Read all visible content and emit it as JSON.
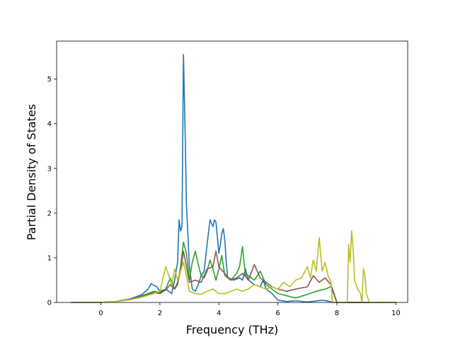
{
  "chart_data": {
    "type": "line",
    "title": "",
    "xlabel": "Frequency (THz)",
    "ylabel": "Partial Density of States",
    "xlim": [
      -1.5,
      10.4
    ],
    "ylim": [
      0,
      5.85
    ],
    "xticks": [
      0,
      2,
      4,
      6,
      8,
      10
    ],
    "yticks": [
      0,
      1,
      2,
      3,
      4,
      5
    ],
    "xtick_labels": [
      "0",
      "2",
      "4",
      "6",
      "8",
      "10"
    ],
    "ytick_labels": [
      "0",
      "1",
      "2",
      "3",
      "4",
      "5"
    ],
    "grid": false,
    "legend": "none",
    "series": [
      {
        "color": "#1f77b4",
        "points": [
          [
            -1.0,
            0
          ],
          [
            0.0,
            0
          ],
          [
            0.5,
            0.02
          ],
          [
            1.0,
            0.08
          ],
          [
            1.4,
            0.18
          ],
          [
            1.6,
            0.3
          ],
          [
            1.7,
            0.42
          ],
          [
            1.8,
            0.38
          ],
          [
            1.9,
            0.35
          ],
          [
            2.0,
            0.25
          ],
          [
            2.2,
            0.3
          ],
          [
            2.3,
            0.25
          ],
          [
            2.4,
            0.2
          ],
          [
            2.5,
            0.5
          ],
          [
            2.6,
            0.9
          ],
          [
            2.65,
            1.85
          ],
          [
            2.7,
            1.6
          ],
          [
            2.75,
            1.7
          ],
          [
            2.8,
            5.55
          ],
          [
            2.85,
            4.0
          ],
          [
            2.9,
            2.2
          ],
          [
            3.0,
            0.8
          ],
          [
            3.1,
            0.3
          ],
          [
            3.2,
            0.25
          ],
          [
            3.3,
            0.4
          ],
          [
            3.4,
            0.6
          ],
          [
            3.5,
            0.7
          ],
          [
            3.6,
            1.3
          ],
          [
            3.7,
            1.85
          ],
          [
            3.8,
            1.7
          ],
          [
            3.85,
            1.85
          ],
          [
            3.9,
            1.8
          ],
          [
            4.0,
            1.1
          ],
          [
            4.05,
            1.3
          ],
          [
            4.1,
            1.55
          ],
          [
            4.15,
            1.65
          ],
          [
            4.2,
            1.4
          ],
          [
            4.25,
            0.9
          ],
          [
            4.3,
            0.55
          ],
          [
            4.5,
            0.5
          ],
          [
            4.7,
            0.55
          ],
          [
            4.8,
            0.5
          ],
          [
            4.9,
            0.75
          ],
          [
            5.0,
            0.5
          ],
          [
            5.2,
            0.4
          ],
          [
            5.4,
            0.35
          ],
          [
            5.5,
            0.5
          ],
          [
            5.6,
            0.3
          ],
          [
            5.8,
            0.2
          ],
          [
            6.0,
            0.05
          ],
          [
            6.3,
            0.02
          ],
          [
            6.6,
            0.04
          ],
          [
            7.0,
            0.01
          ],
          [
            7.5,
            0.05
          ],
          [
            7.7,
            0.03
          ],
          [
            7.9,
            0.0
          ],
          [
            8.0,
            0
          ],
          [
            10.0,
            0
          ]
        ]
      },
      {
        "color": "#2ca02c",
        "points": [
          [
            -1.0,
            0
          ],
          [
            0.0,
            0
          ],
          [
            0.5,
            0.02
          ],
          [
            1.0,
            0.07
          ],
          [
            1.4,
            0.15
          ],
          [
            1.6,
            0.2
          ],
          [
            1.8,
            0.25
          ],
          [
            2.0,
            0.22
          ],
          [
            2.2,
            0.3
          ],
          [
            2.35,
            0.55
          ],
          [
            2.5,
            0.3
          ],
          [
            2.6,
            0.4
          ],
          [
            2.7,
            0.8
          ],
          [
            2.8,
            1.35
          ],
          [
            2.9,
            1.1
          ],
          [
            3.0,
            0.5
          ],
          [
            3.1,
            0.9
          ],
          [
            3.2,
            1.15
          ],
          [
            3.3,
            0.85
          ],
          [
            3.4,
            0.6
          ],
          [
            3.5,
            0.55
          ],
          [
            3.6,
            0.7
          ],
          [
            3.7,
            0.95
          ],
          [
            3.8,
            0.75
          ],
          [
            3.9,
            0.5
          ],
          [
            4.0,
            0.75
          ],
          [
            4.1,
            1.05
          ],
          [
            4.2,
            0.6
          ],
          [
            4.4,
            0.5
          ],
          [
            4.6,
            0.65
          ],
          [
            4.7,
            0.8
          ],
          [
            4.8,
            1.25
          ],
          [
            4.9,
            0.6
          ],
          [
            5.0,
            0.6
          ],
          [
            5.2,
            0.5
          ],
          [
            5.4,
            0.7
          ],
          [
            5.6,
            0.4
          ],
          [
            5.8,
            0.3
          ],
          [
            6.0,
            0.2
          ],
          [
            6.3,
            0.15
          ],
          [
            6.6,
            0.1
          ],
          [
            7.0,
            0.18
          ],
          [
            7.3,
            0.25
          ],
          [
            7.6,
            0.3
          ],
          [
            7.8,
            0.35
          ],
          [
            8.0,
            0
          ],
          [
            10.0,
            0
          ]
        ]
      },
      {
        "color": "#8c564b",
        "points": [
          [
            -1.0,
            0
          ],
          [
            0.0,
            0
          ],
          [
            0.5,
            0.02
          ],
          [
            1.0,
            0.07
          ],
          [
            1.4,
            0.14
          ],
          [
            1.6,
            0.18
          ],
          [
            1.8,
            0.22
          ],
          [
            2.0,
            0.2
          ],
          [
            2.2,
            0.28
          ],
          [
            2.35,
            0.4
          ],
          [
            2.5,
            0.3
          ],
          [
            2.6,
            0.45
          ],
          [
            2.7,
            0.7
          ],
          [
            2.8,
            1.15
          ],
          [
            2.9,
            0.8
          ],
          [
            3.0,
            0.45
          ],
          [
            3.2,
            0.5
          ],
          [
            3.4,
            0.45
          ],
          [
            3.6,
            0.75
          ],
          [
            3.8,
            0.8
          ],
          [
            3.9,
            1.15
          ],
          [
            4.0,
            0.8
          ],
          [
            4.2,
            0.65
          ],
          [
            4.4,
            0.5
          ],
          [
            4.6,
            0.55
          ],
          [
            4.8,
            0.65
          ],
          [
            5.0,
            0.5
          ],
          [
            5.2,
            0.85
          ],
          [
            5.4,
            0.55
          ],
          [
            5.6,
            0.45
          ],
          [
            5.8,
            0.35
          ],
          [
            6.0,
            0.3
          ],
          [
            6.3,
            0.25
          ],
          [
            6.6,
            0.3
          ],
          [
            7.0,
            0.35
          ],
          [
            7.2,
            0.6
          ],
          [
            7.4,
            0.45
          ],
          [
            7.6,
            0.55
          ],
          [
            7.8,
            0.4
          ],
          [
            8.0,
            0
          ],
          [
            10.0,
            0
          ]
        ]
      },
      {
        "color": "#bcbd22",
        "points": [
          [
            -1.0,
            0
          ],
          [
            0.0,
            0
          ],
          [
            0.5,
            0.02
          ],
          [
            1.0,
            0.06
          ],
          [
            1.4,
            0.12
          ],
          [
            1.6,
            0.16
          ],
          [
            1.8,
            0.2
          ],
          [
            2.0,
            0.25
          ],
          [
            2.2,
            0.8
          ],
          [
            2.3,
            0.6
          ],
          [
            2.4,
            0.4
          ],
          [
            2.5,
            0.75
          ],
          [
            2.6,
            0.5
          ],
          [
            2.7,
            0.7
          ],
          [
            2.8,
            0.9
          ],
          [
            2.9,
            0.6
          ],
          [
            3.0,
            0.25
          ],
          [
            3.2,
            0.2
          ],
          [
            3.4,
            0.18
          ],
          [
            3.6,
            0.25
          ],
          [
            3.8,
            0.3
          ],
          [
            4.0,
            0.2
          ],
          [
            4.2,
            0.2
          ],
          [
            4.4,
            0.25
          ],
          [
            4.6,
            0.3
          ],
          [
            4.8,
            0.25
          ],
          [
            5.0,
            0.3
          ],
          [
            5.2,
            0.4
          ],
          [
            5.4,
            0.35
          ],
          [
            5.6,
            0.3
          ],
          [
            5.8,
            0.35
          ],
          [
            6.0,
            0.3
          ],
          [
            6.2,
            0.45
          ],
          [
            6.4,
            0.35
          ],
          [
            6.6,
            0.5
          ],
          [
            6.8,
            0.55
          ],
          [
            7.0,
            0.8
          ],
          [
            7.1,
            0.55
          ],
          [
            7.2,
            0.95
          ],
          [
            7.3,
            0.7
          ],
          [
            7.4,
            1.45
          ],
          [
            7.5,
            0.7
          ],
          [
            7.6,
            0.9
          ],
          [
            7.7,
            0.6
          ],
          [
            7.8,
            0.45
          ],
          [
            7.85,
            0.0
          ],
          [
            8.35,
            0.0
          ],
          [
            8.4,
            1.3
          ],
          [
            8.45,
            0.9
          ],
          [
            8.5,
            1.6
          ],
          [
            8.55,
            1.2
          ],
          [
            8.6,
            0.5
          ],
          [
            8.7,
            0.3
          ],
          [
            8.8,
            0.2
          ],
          [
            8.85,
            0.0
          ],
          [
            8.9,
            0.75
          ],
          [
            8.95,
            0.6
          ],
          [
            9.0,
            0.2
          ],
          [
            9.1,
            0.0
          ],
          [
            10.0,
            0
          ]
        ]
      }
    ]
  }
}
